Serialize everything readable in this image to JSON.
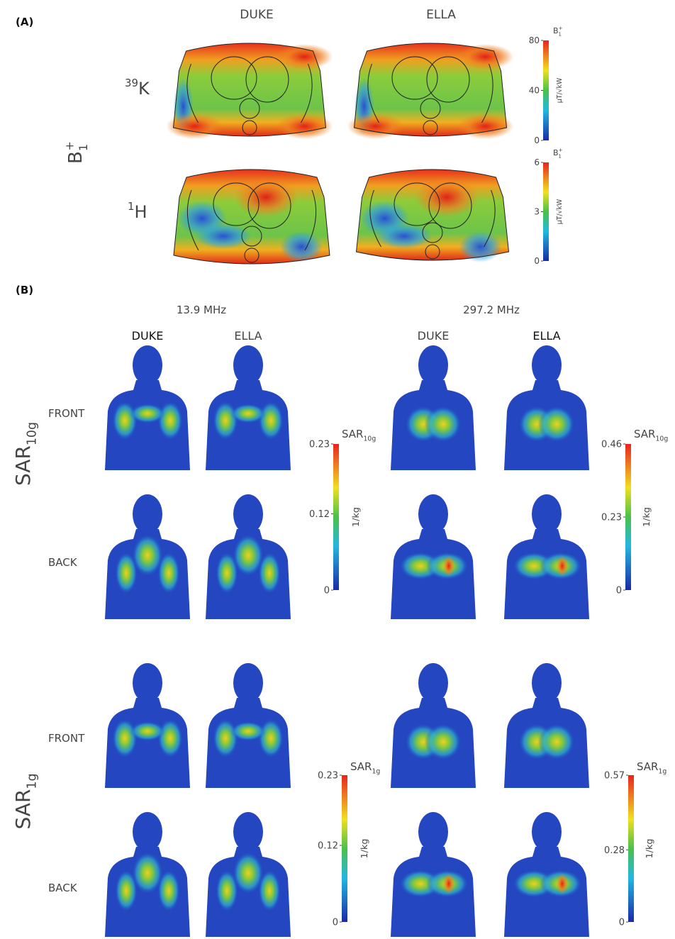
{
  "panel_a": {
    "label": "(A)",
    "columns": [
      "DUKE",
      "ELLA"
    ],
    "row_group": {
      "base": "B",
      "sub": "1",
      "sup": "+"
    },
    "rows": [
      {
        "sup": "39",
        "base": "K"
      },
      {
        "sup": "1",
        "base": "H"
      }
    ],
    "colorbars": [
      {
        "title": {
          "base": "B",
          "sub": "1",
          "sup": "+"
        },
        "unit": "μT/√kW",
        "lim": [
          0,
          80
        ],
        "ticks": [
          0,
          40,
          80
        ]
      },
      {
        "title": {
          "base": "B",
          "sub": "1",
          "sup": "+"
        },
        "unit": "μT/√kW",
        "lim": [
          0,
          6
        ],
        "ticks": [
          0,
          3,
          6
        ]
      }
    ]
  },
  "panel_b": {
    "label": "(B)",
    "frequencies": [
      "13.9 MHz",
      "297.2 MHz"
    ],
    "columns": [
      "DUKE",
      "ELLA",
      "DUKE",
      "ELLA"
    ],
    "groups": [
      {
        "label": {
          "base": "SAR",
          "sub": "10g"
        },
        "rows": [
          "FRONT",
          "BACK"
        ],
        "colorbars": [
          {
            "title": {
              "base": "SAR",
              "sub": "10g"
            },
            "unit": "1/kg",
            "lim": [
              0,
              0.23
            ],
            "ticks": [
              0,
              0.12,
              0.23
            ]
          },
          {
            "title": {
              "base": "SAR",
              "sub": "10g"
            },
            "unit": "1/kg",
            "lim": [
              0,
              0.46
            ],
            "ticks": [
              0,
              0.23,
              0.46
            ]
          }
        ]
      },
      {
        "label": {
          "base": "SAR",
          "sub": "1g"
        },
        "rows": [
          "FRONT",
          "BACK"
        ],
        "colorbars": [
          {
            "title": {
              "base": "SAR",
              "sub": "1g"
            },
            "unit": "1/kg",
            "lim": [
              0,
              0.23
            ],
            "ticks": [
              0,
              0.12,
              0.23
            ]
          },
          {
            "title": {
              "base": "SAR",
              "sub": "1g"
            },
            "unit": "1/kg",
            "lim": [
              0,
              0.57
            ],
            "ticks": [
              0,
              0.28,
              0.57
            ]
          }
        ]
      }
    ]
  }
}
